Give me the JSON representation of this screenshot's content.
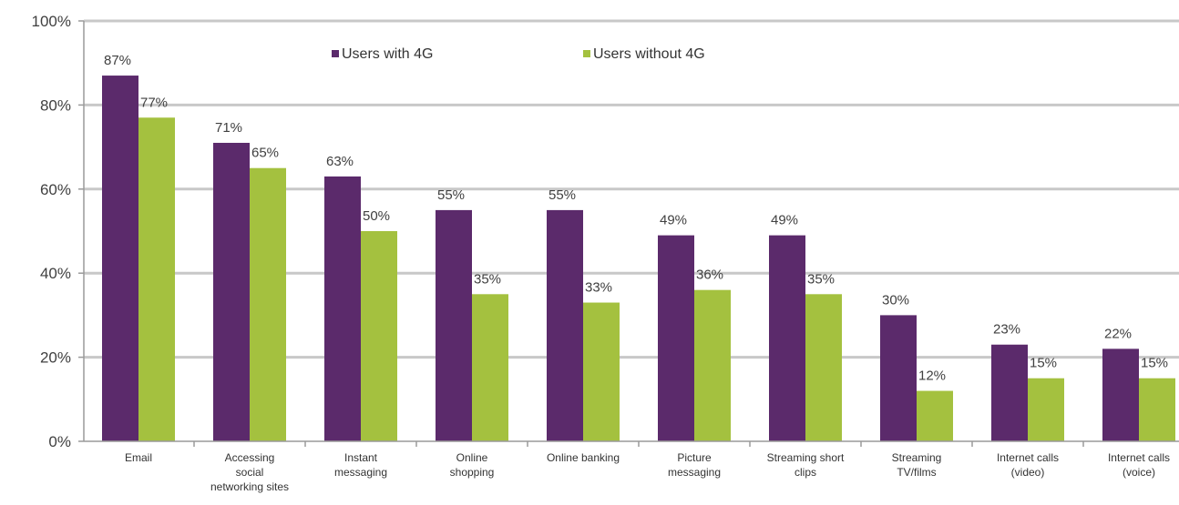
{
  "chart_data": {
    "type": "bar",
    "categories": [
      [
        "Email"
      ],
      [
        "Accessing",
        "social",
        "networking sites"
      ],
      [
        "Instant",
        "messaging"
      ],
      [
        "Online",
        "shopping"
      ],
      [
        "Online banking"
      ],
      [
        "Picture",
        "messaging"
      ],
      [
        "Streaming short",
        "clips"
      ],
      [
        "Streaming",
        "TV/films"
      ],
      [
        "Internet calls",
        "(video)"
      ],
      [
        "Internet calls",
        "(voice)"
      ]
    ],
    "series": [
      {
        "name": "Users with 4G",
        "color": "#5b2a6b",
        "values": [
          87,
          71,
          63,
          55,
          55,
          49,
          49,
          30,
          23,
          22
        ],
        "labels": [
          "87%",
          "71%",
          "63%",
          "55%",
          "55%",
          "49%",
          "49%",
          "30%",
          "23%",
          "22%"
        ]
      },
      {
        "name": "Users without 4G",
        "color": "#a4c13f",
        "values": [
          77,
          65,
          50,
          35,
          33,
          36,
          35,
          12,
          15,
          15
        ],
        "labels": [
          "77%",
          "65%",
          "50%",
          "35%",
          "33%",
          "36%",
          "35%",
          "12%",
          "15%",
          "15%"
        ]
      }
    ],
    "yticks": [
      "0%",
      "20%",
      "40%",
      "60%",
      "80%",
      "100%"
    ],
    "ylim": [
      0,
      100
    ],
    "grid": true,
    "legend": "top"
  }
}
